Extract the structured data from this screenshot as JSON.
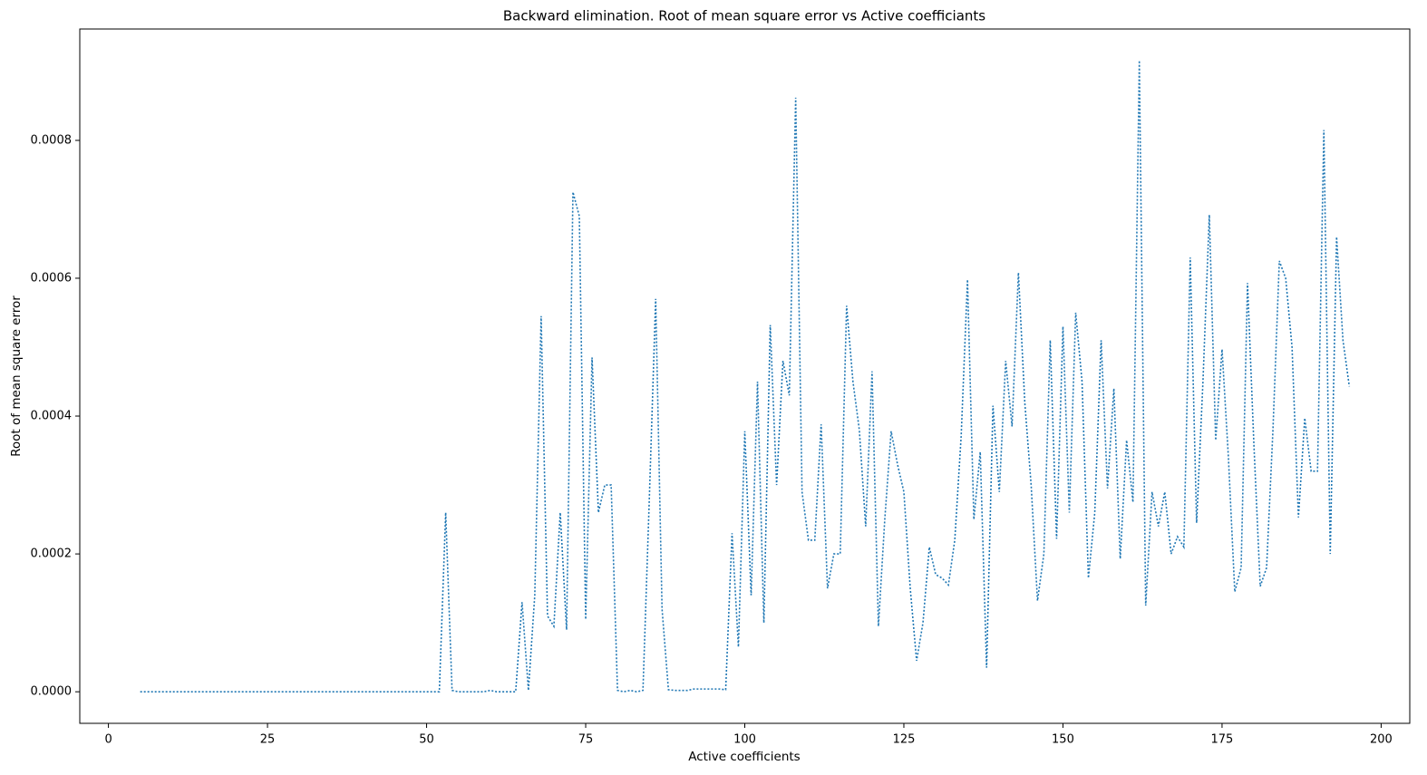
{
  "chart_data": {
    "type": "line",
    "title": "Backward elimination. Root of mean square error vs Active coefficiants",
    "x_label": "Active coefficients",
    "y_label": "Root of mean square error",
    "color": "#1f77b4",
    "line_style": "dotted",
    "xlim": [
      -4.5,
      204.5
    ],
    "ylim": [
      -4.58e-05,
      0.0009616
    ],
    "xticks": [
      0,
      25,
      50,
      75,
      100,
      125,
      150,
      175,
      200
    ],
    "yticks": [
      {
        "value": 0,
        "label": "0.0000"
      },
      {
        "value": 0.0002,
        "label": "0.0002"
      },
      {
        "value": 0.0004,
        "label": "0.0004"
      },
      {
        "value": 0.0006,
        "label": "0.0006"
      },
      {
        "value": 0.0008,
        "label": "0.0008"
      }
    ],
    "x": [
      5,
      6,
      7,
      8,
      9,
      10,
      11,
      12,
      13,
      14,
      15,
      16,
      17,
      18,
      19,
      20,
      21,
      22,
      23,
      24,
      25,
      26,
      27,
      28,
      29,
      30,
      31,
      32,
      33,
      34,
      35,
      36,
      37,
      38,
      39,
      40,
      41,
      42,
      43,
      44,
      45,
      46,
      47,
      48,
      49,
      50,
      51,
      52,
      53,
      54,
      55,
      56,
      57,
      58,
      59,
      60,
      61,
      62,
      63,
      64,
      65,
      66,
      67,
      68,
      69,
      70,
      71,
      72,
      73,
      74,
      75,
      76,
      77,
      78,
      79,
      80,
      81,
      82,
      83,
      84,
      85,
      86,
      87,
      88,
      89,
      90,
      91,
      92,
      93,
      94,
      95,
      96,
      97,
      98,
      99,
      100,
      101,
      102,
      103,
      104,
      105,
      106,
      107,
      108,
      109,
      110,
      111,
      112,
      113,
      114,
      115,
      116,
      117,
      118,
      119,
      120,
      121,
      122,
      123,
      124,
      125,
      126,
      127,
      128,
      129,
      130,
      131,
      132,
      133,
      134,
      135,
      136,
      137,
      138,
      139,
      140,
      141,
      142,
      143,
      144,
      145,
      146,
      147,
      148,
      149,
      150,
      151,
      152,
      153,
      154,
      155,
      156,
      157,
      158,
      159,
      160,
      161,
      162,
      163,
      164,
      165,
      166,
      167,
      168,
      169,
      170,
      171,
      172,
      173,
      174,
      175,
      176,
      177,
      178,
      179,
      180,
      181,
      182,
      183,
      184,
      185,
      186,
      187,
      188,
      189,
      190,
      191,
      192,
      193,
      194,
      195
    ],
    "values": [
      0,
      0,
      0,
      0,
      0,
      0,
      0,
      0,
      0,
      0,
      0,
      0,
      0,
      0,
      0,
      0,
      0,
      0,
      0,
      0,
      0,
      0,
      0,
      0,
      0,
      0,
      0,
      0,
      0,
      0,
      0,
      0,
      0,
      0,
      0,
      0,
      0,
      0,
      0,
      0,
      0,
      0,
      0,
      0,
      0,
      0,
      0,
      0,
      0.00026,
      2e-06,
      0,
      0,
      0,
      0,
      0,
      2e-06,
      0,
      0,
      0,
      0,
      0.00013,
      2e-06,
      0.00014,
      0.000545,
      0.00011,
      9.5e-05,
      0.00026,
      9e-05,
      0.000725,
      0.00069,
      0.000105,
      0.000485,
      0.00026,
      0.0003,
      0.0003,
      2e-06,
      0,
      2e-06,
      0,
      2e-06,
      0.00028,
      0.00057,
      0.00012,
      3e-06,
      2e-06,
      2e-06,
      2e-06,
      4e-06,
      4e-06,
      4e-06,
      4e-06,
      4e-06,
      3e-06,
      0.00023,
      6.5e-05,
      0.000378,
      0.00014,
      0.00045,
      0.0001,
      0.000532,
      0.0003,
      0.00048,
      0.00043,
      0.000862,
      0.00029,
      0.00022,
      0.00022,
      0.000388,
      0.00015,
      0.0002,
      0.0002,
      0.00056,
      0.00045,
      0.00038,
      0.00024,
      0.000465,
      9.5e-05,
      0.00025,
      0.000378,
      0.00033,
      0.00029,
      0.00015,
      4.5e-05,
      0.0001,
      0.00021,
      0.00017,
      0.000165,
      0.000155,
      0.00022,
      0.00037,
      0.000598,
      0.00025,
      0.000348,
      3.5e-05,
      0.000415,
      0.00029,
      0.00048,
      0.000385,
      0.000608,
      0.00042,
      0.0003,
      0.000132,
      0.0002,
      0.00051,
      0.000222,
      0.00053,
      0.00026,
      0.00055,
      0.00045,
      0.000165,
      0.00026,
      0.00051,
      0.000295,
      0.00044,
      0.000193,
      0.000365,
      0.000275,
      0.000916,
      0.000125,
      0.00029,
      0.00024,
      0.00029,
      0.0002,
      0.000225,
      0.00021,
      0.00063,
      0.000245,
      0.00045,
      0.000692,
      0.000365,
      0.000497,
      0.00034,
      0.000145,
      0.00018,
      0.000593,
      0.00036,
      0.000153,
      0.00018,
      0.00038,
      0.000625,
      0.0006,
      0.0005,
      0.000253,
      0.000397,
      0.00032,
      0.00032,
      0.000815,
      0.0002,
      0.00066,
      0.00051,
      0.000443
    ]
  }
}
